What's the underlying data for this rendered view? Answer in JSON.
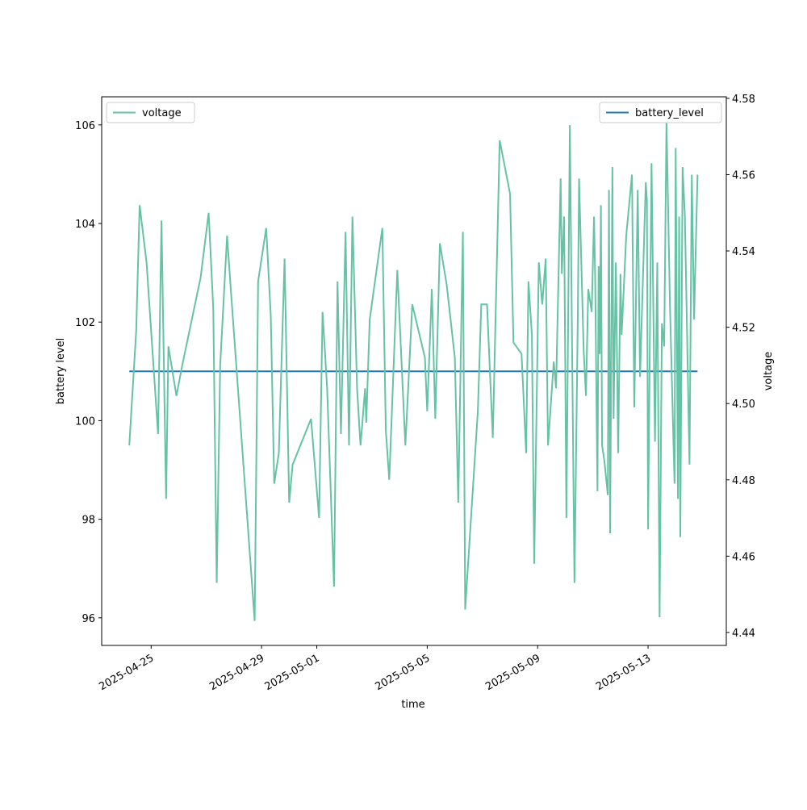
{
  "chart_data": {
    "type": "line",
    "x_label": "time",
    "y_label": "battery level",
    "y2_label": "voltage",
    "x": [
      "2025-04-24 05:00",
      "2025-04-24 11:00",
      "2025-04-24 14:00",
      "2025-04-24 20:00",
      "2025-04-25 06:00",
      "2025-04-25 09:00",
      "2025-04-25 13:00",
      "2025-04-25 15:00",
      "2025-04-25 22:00",
      "2025-04-26 03:00",
      "2025-04-26 19:00",
      "2025-04-27 02:00",
      "2025-04-27 06:00",
      "2025-04-27 09:00",
      "2025-04-27 12:00",
      "2025-04-27 18:00",
      "2025-04-27 21:00",
      "2025-04-28 18:00",
      "2025-04-28 21:00",
      "2025-04-29 04:00",
      "2025-04-29 08:00",
      "2025-04-29 11:00",
      "2025-04-29 15:00",
      "2025-04-29 20:00",
      "2025-04-30 00:00",
      "2025-04-30 03:00",
      "2025-04-30 19:00",
      "2025-05-01 02:00",
      "2025-05-01 05:00",
      "2025-05-01 09:00",
      "2025-05-01 15:00",
      "2025-05-01 18:00",
      "2025-05-01 21:00",
      "2025-05-02 01:00",
      "2025-05-02 04:00",
      "2025-05-02 07:00",
      "2025-05-02 11:00",
      "2025-05-02 14:00",
      "2025-05-02 18:00",
      "2025-05-02 19:00",
      "2025-05-02 22:00",
      "2025-05-03 09:00",
      "2025-05-03 12:00",
      "2025-05-03 15:00",
      "2025-05-03 22:00",
      "2025-05-04 05:00",
      "2025-05-04 11:00",
      "2025-05-04 22:00",
      "2025-05-05 00:00",
      "2025-05-05 04:00",
      "2025-05-05 07:00",
      "2025-05-05 11:00",
      "2025-05-05 17:00",
      "2025-05-06 00:00",
      "2025-05-06 03:00",
      "2025-05-06 07:00",
      "2025-05-06 09:00",
      "2025-05-06 20:00",
      "2025-05-06 23:00",
      "2025-05-07 04:00",
      "2025-05-07 09:00",
      "2025-05-07 15:00",
      "2025-05-08 00:00",
      "2025-05-08 03:00",
      "2025-05-08 10:00",
      "2025-05-08 14:00",
      "2025-05-08 16:00",
      "2025-05-08 19:00",
      "2025-05-08 21:00",
      "2025-05-09 01:00",
      "2025-05-09 04:00",
      "2025-05-09 07:00",
      "2025-05-09 09:00",
      "2025-05-09 14:00",
      "2025-05-09 16:00",
      "2025-05-09 20:00",
      "2025-05-09 21:00",
      "2025-05-09 23:00",
      "2025-05-10 01:00",
      "2025-05-10 04:00",
      "2025-05-10 08:00",
      "2025-05-10 11:00",
      "2025-05-10 12:00",
      "2025-05-10 16:00",
      "2025-05-10 18:00",
      "2025-05-10 20:00",
      "2025-05-10 23:00",
      "2025-05-11 01:00",
      "2025-05-11 02:00",
      "2025-05-11 04:00",
      "2025-05-11 05:00",
      "2025-05-11 06:00",
      "2025-05-11 07:00",
      "2025-05-11 08:00",
      "2025-05-11 10:00",
      "2025-05-11 13:00",
      "2025-05-11 14:00",
      "2025-05-11 15:00",
      "2025-05-11 17:00",
      "2025-05-11 18:00",
      "2025-05-11 20:00",
      "2025-05-11 22:00",
      "2025-05-12 00:00",
      "2025-05-12 01:00",
      "2025-05-12 05:00",
      "2025-05-12 10:00",
      "2025-05-12 12:00",
      "2025-05-12 15:00",
      "2025-05-12 17:00",
      "2025-05-12 22:00",
      "2025-05-12 23:00",
      "2025-05-13 00:00",
      "2025-05-13 03:00",
      "2025-05-13 06:00",
      "2025-05-13 08:00",
      "2025-05-13 10:00",
      "2025-05-13 12:00",
      "2025-05-13 14:00",
      "2025-05-13 16:00",
      "2025-05-13 19:00",
      "2025-05-13 23:00",
      "2025-05-14 00:00",
      "2025-05-14 02:00",
      "2025-05-14 03:00",
      "2025-05-14 04:00",
      "2025-05-14 06:00",
      "2025-05-14 08:00",
      "2025-05-14 12:00",
      "2025-05-14 14:00",
      "2025-05-14 16:00",
      "2025-05-14 17:00",
      "2025-05-14 19:00"
    ],
    "series": [
      {
        "name": "battery_level",
        "color": "#1f77b4",
        "axis": "y",
        "legend": "upper right",
        "values": [
          101,
          101,
          101,
          101,
          101,
          101,
          101,
          101,
          101,
          101,
          101,
          101,
          101,
          101,
          101,
          101,
          101,
          101,
          101,
          101,
          101,
          101,
          101,
          101,
          101,
          101,
          101,
          101,
          101,
          101,
          101,
          101,
          101,
          101,
          101,
          101,
          101,
          101,
          101,
          101,
          101,
          101,
          101,
          101,
          101,
          101,
          101,
          101,
          101,
          101,
          101,
          101,
          101,
          101,
          101,
          101,
          101,
          101,
          101,
          101,
          101,
          101,
          101,
          101,
          101,
          101,
          101,
          101,
          101,
          101,
          101,
          101,
          101,
          101,
          101,
          101,
          101,
          101,
          101,
          101,
          101,
          101,
          101,
          101,
          101,
          101,
          101,
          101,
          101,
          101,
          101,
          101,
          101,
          101,
          101,
          101,
          101,
          101,
          101,
          101,
          101,
          101,
          101,
          101,
          101,
          101,
          101,
          101,
          101,
          101,
          101,
          101,
          101,
          101,
          101,
          101,
          101,
          101,
          101,
          101,
          101,
          101,
          101,
          101,
          101,
          101,
          101,
          101,
          101,
          101,
          101,
          101
        ]
      },
      {
        "name": "voltage",
        "color": "#66c2a5",
        "axis": "y2",
        "legend": "upper left",
        "values": [
          4.489,
          4.519,
          4.552,
          4.537,
          4.492,
          4.548,
          4.475,
          4.515,
          4.502,
          4.51,
          4.533,
          4.55,
          4.525,
          4.453,
          4.51,
          4.544,
          4.531,
          4.443,
          4.532,
          4.546,
          4.523,
          4.479,
          4.487,
          4.538,
          4.474,
          4.484,
          4.496,
          4.47,
          4.524,
          4.504,
          4.452,
          4.532,
          4.492,
          4.545,
          4.489,
          4.549,
          4.504,
          4.489,
          4.504,
          4.495,
          4.522,
          4.546,
          4.493,
          4.48,
          4.535,
          4.489,
          4.526,
          4.512,
          4.498,
          4.53,
          4.496,
          4.542,
          4.531,
          4.512,
          4.474,
          4.545,
          4.446,
          4.498,
          4.526,
          4.526,
          4.491,
          4.569,
          4.555,
          4.516,
          4.513,
          4.487,
          4.532,
          4.518,
          4.458,
          4.537,
          4.526,
          4.538,
          4.489,
          4.511,
          4.504,
          4.559,
          4.534,
          4.549,
          4.47,
          4.573,
          4.453,
          4.525,
          4.559,
          4.514,
          4.502,
          4.53,
          4.524,
          4.549,
          4.533,
          4.477,
          4.536,
          4.513,
          4.552,
          4.489,
          4.485,
          4.476,
          4.556,
          4.466,
          4.562,
          4.496,
          4.537,
          4.487,
          4.534,
          4.518,
          4.544,
          4.56,
          4.499,
          4.556,
          4.507,
          4.558,
          4.553,
          4.467,
          4.563,
          4.49,
          4.537,
          4.444,
          4.521,
          4.515,
          4.574,
          4.526,
          4.479,
          4.567,
          4.475,
          4.549,
          4.465,
          4.562,
          4.549,
          4.484,
          4.56,
          4.522,
          4.535,
          4.56
        ]
      }
    ],
    "xlim": [
      "2025-04-23 05:00",
      "2025-05-15 20:00"
    ],
    "xticks": [
      "2025-04-25",
      "2025-04-29",
      "2025-05-01",
      "2025-05-05",
      "2025-05-09",
      "2025-05-13"
    ],
    "ylim": [
      95.44,
      106.57
    ],
    "yticks": [
      96,
      98,
      100,
      102,
      104,
      106
    ],
    "y2lim": [
      4.4366,
      4.5804
    ],
    "y2ticks": [
      4.44,
      4.46,
      4.48,
      {
        "value": 4.5,
        "label": "4.50"
      },
      4.52,
      4.54,
      4.56,
      4.58
    ]
  }
}
